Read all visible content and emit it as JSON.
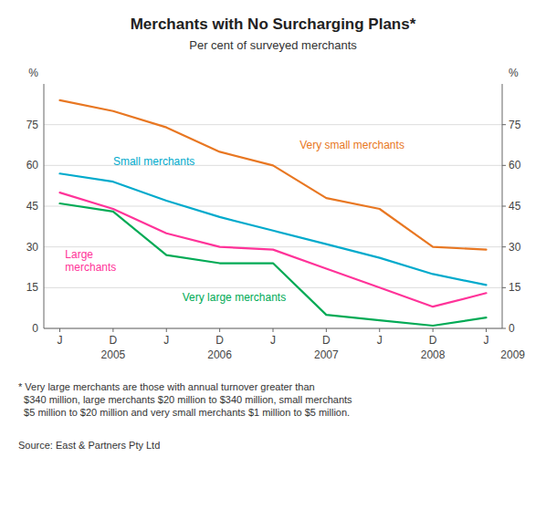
{
  "chart_data": {
    "type": "line",
    "title": "Merchants with No Surcharging Plans*",
    "subtitle": "Per cent of surveyed merchants",
    "y_label": "%",
    "y2_label": "%",
    "footnote": "* Very large merchants are those with annual turnover greater than\n  $340 million, large merchants $20 million to $340 million, small merchants\n  $5 million to $20 million and very small merchants $1 million to $5 million.",
    "source": "Source: East & Partners Pty Ltd",
    "categories": [
      "J",
      "D",
      "J",
      "D",
      "J",
      "D",
      "J",
      "D",
      "J"
    ],
    "annotations": [
      {
        "text": "2005",
        "x": 1
      },
      {
        "text": "2006",
        "x": 3
      },
      {
        "text": "2007",
        "x": 5
      },
      {
        "text": "2008",
        "x": 7
      },
      {
        "text": "2009",
        "x": 8.5
      }
    ],
    "ylim": [
      0,
      90
    ],
    "yticks": [
      0,
      15,
      30,
      45,
      60,
      75
    ],
    "y2lim": [
      0,
      90
    ],
    "y2ticks": [
      0,
      15,
      30,
      45,
      60,
      75
    ],
    "grid": true,
    "series": [
      {
        "name": "Very small merchants",
        "color": "#E87722",
        "values": [
          84,
          80,
          74,
          65,
          60,
          48,
          44,
          30,
          29
        ]
      },
      {
        "name": "Small merchants",
        "color": "#00AACC",
        "values": [
          57,
          54,
          47,
          41,
          36,
          31,
          26,
          20,
          16
        ]
      },
      {
        "name": "Large\nmerchants",
        "color": "#FF3399",
        "values": [
          50,
          44,
          35,
          30,
          29,
          22,
          15,
          8,
          13
        ]
      },
      {
        "name": "Very large merchants",
        "color": "#00AA55",
        "values": [
          46,
          43,
          27,
          24,
          24,
          5,
          3,
          1,
          4
        ]
      }
    ]
  }
}
